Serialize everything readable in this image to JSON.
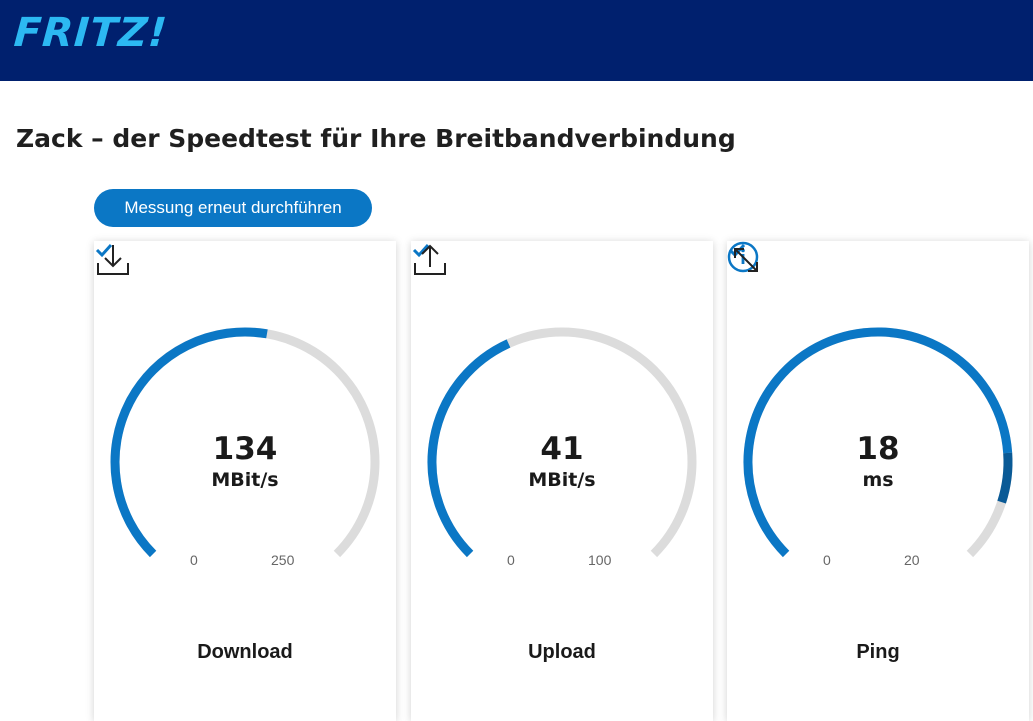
{
  "header": {
    "logo_text": "FRITZ!",
    "background": "#00206e",
    "logo_color": "#2cb9f2"
  },
  "page": {
    "title": "Zack – der Speedtest für Ihre Breitbandverbindung"
  },
  "actions": {
    "rerun_label": "Messung erneut durchführen"
  },
  "colors": {
    "accent": "#0b77c5",
    "track": "#dcdcdc",
    "ping_dark": "#0a5a96"
  },
  "cards": [
    {
      "type": "download",
      "value": "134",
      "unit": "MBit/s",
      "min": "0",
      "max": "250",
      "label": "Download",
      "fraction": 0.536,
      "icon": "download-icon",
      "status": "check-icon"
    },
    {
      "type": "upload",
      "value": "41",
      "unit": "MBit/s",
      "min": "0",
      "max": "100",
      "label": "Upload",
      "fraction": 0.41,
      "icon": "upload-icon",
      "status": "check-icon"
    },
    {
      "type": "ping",
      "value": "18",
      "unit": "ms",
      "min": "0",
      "max": "20",
      "label": "Ping",
      "fraction": 0.9,
      "icon": "ping-arrows-icon",
      "status": "check-icon",
      "info_icon": "info-icon"
    }
  ]
}
